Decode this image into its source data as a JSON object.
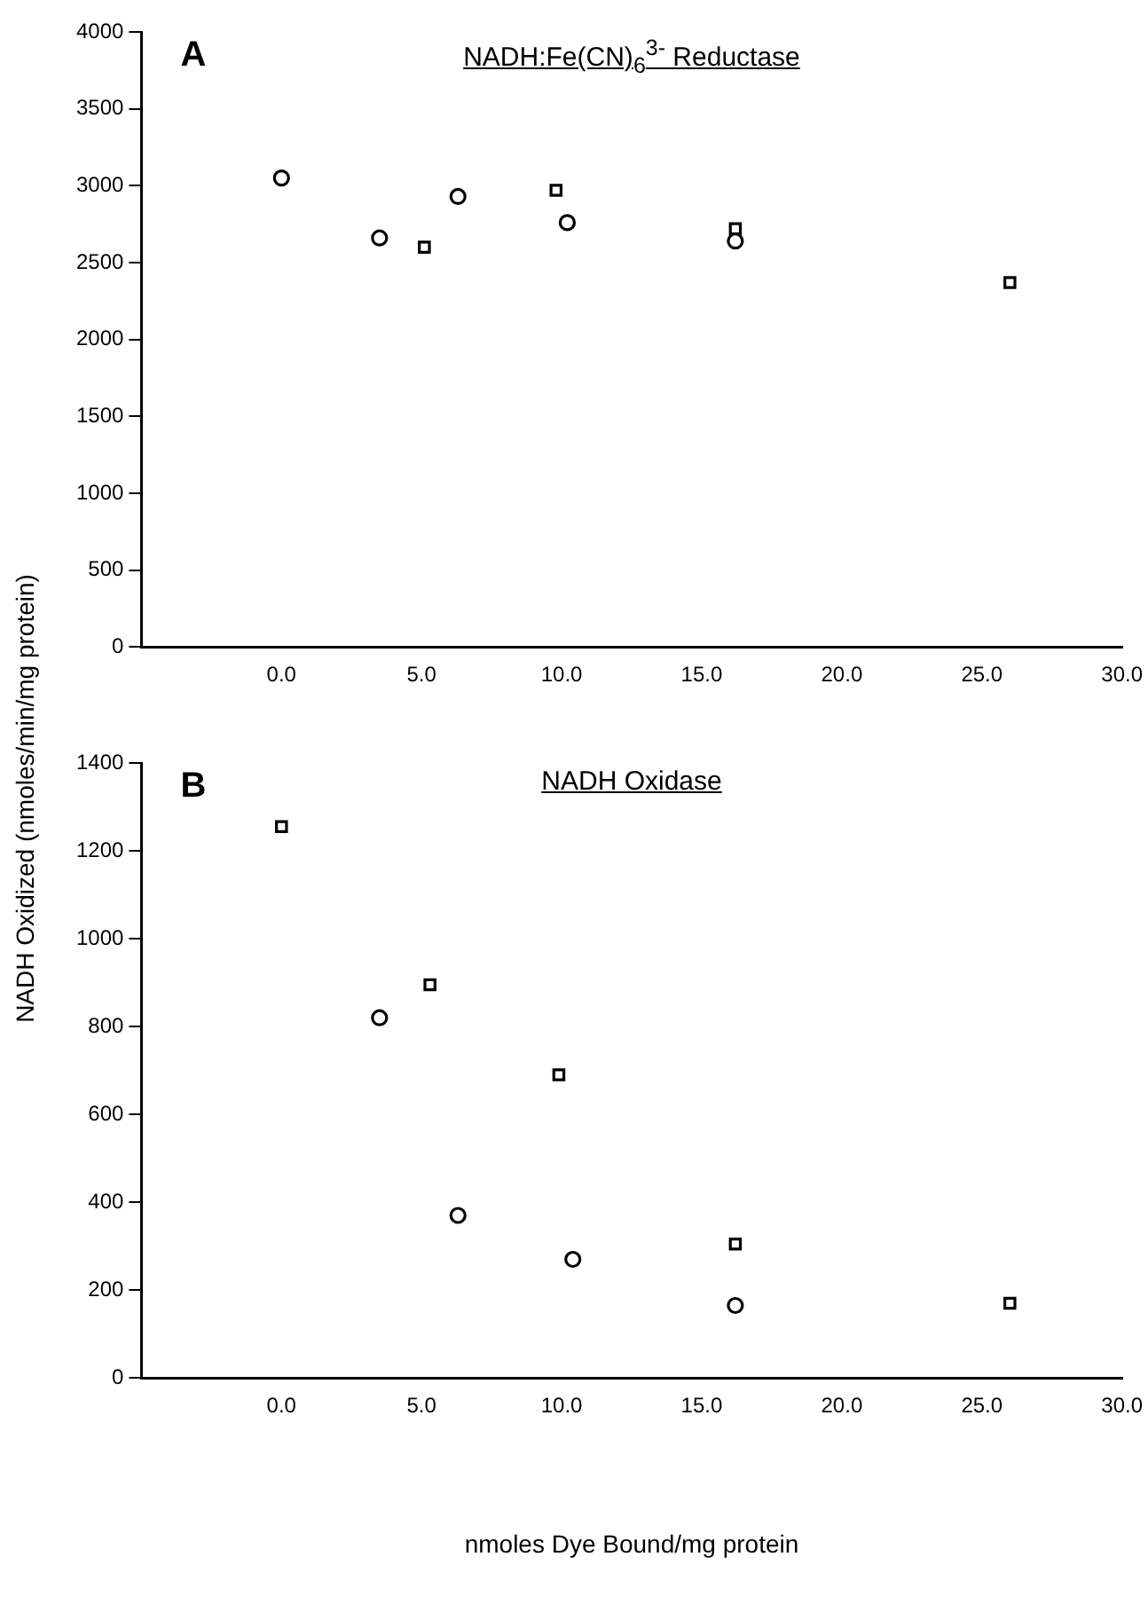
{
  "chart_data": [
    {
      "type": "scatter",
      "title": "NADH:Fe(CN)$_{6}$$^{3-}$ Reductase",
      "annotations": [
        "A"
      ],
      "ylabel": "NADH Oxidized (nmoles/min/mg protein)",
      "xlim": [
        -5,
        30
      ],
      "xticks": [
        {
          "value": 0,
          "label": "0.0"
        },
        {
          "value": 5,
          "label": "5.0"
        },
        {
          "value": 10,
          "label": "10.0"
        },
        {
          "value": 15,
          "label": "15.0"
        },
        {
          "value": 20,
          "label": "20.0"
        },
        {
          "value": 25,
          "label": "25.0"
        },
        {
          "value": 30,
          "label": "30.0"
        }
      ],
      "ylim": [
        0,
        4000
      ],
      "yticks": [
        0,
        500,
        1000,
        1500,
        2000,
        2500,
        3000,
        3500,
        4000
      ],
      "grid": false,
      "legend": false,
      "series": [
        {
          "marker": "circle",
          "color": "#000000",
          "x": [
            0.0,
            3.5,
            6.3,
            10.2,
            16.2
          ],
          "values": [
            3050,
            2660,
            2930,
            2760,
            2640
          ]
        },
        {
          "marker": "square",
          "color": "#000000",
          "x": [
            5.1,
            9.8,
            16.2,
            26.0
          ],
          "values": [
            2600,
            2970,
            2720,
            2370
          ]
        }
      ]
    },
    {
      "type": "scatter",
      "title": "NADH Oxidase",
      "annotations": [
        "B"
      ],
      "xlabel": "nmoles Dye Bound/mg protein",
      "xlim": [
        -5,
        30
      ],
      "xticks": [
        {
          "value": 0,
          "label": "0.0"
        },
        {
          "value": 5,
          "label": "5.0"
        },
        {
          "value": 10,
          "label": "10.0"
        },
        {
          "value": 15,
          "label": "15.0"
        },
        {
          "value": 20,
          "label": "20.0"
        },
        {
          "value": 25,
          "label": "25.0"
        },
        {
          "value": 30,
          "label": "30.0"
        }
      ],
      "ylim": [
        0,
        1400
      ],
      "yticks": [
        0,
        200,
        400,
        600,
        800,
        1000,
        1200,
        1400
      ],
      "grid": false,
      "legend": false,
      "series": [
        {
          "marker": "circle",
          "color": "#000000",
          "x": [
            3.5,
            6.3,
            10.4,
            16.2
          ],
          "values": [
            820,
            370,
            270,
            165
          ]
        },
        {
          "marker": "square",
          "color": "#000000",
          "x": [
            0.0,
            5.3,
            9.9,
            16.2,
            26.0
          ],
          "values": [
            1255,
            895,
            690,
            305,
            170
          ]
        }
      ]
    }
  ]
}
